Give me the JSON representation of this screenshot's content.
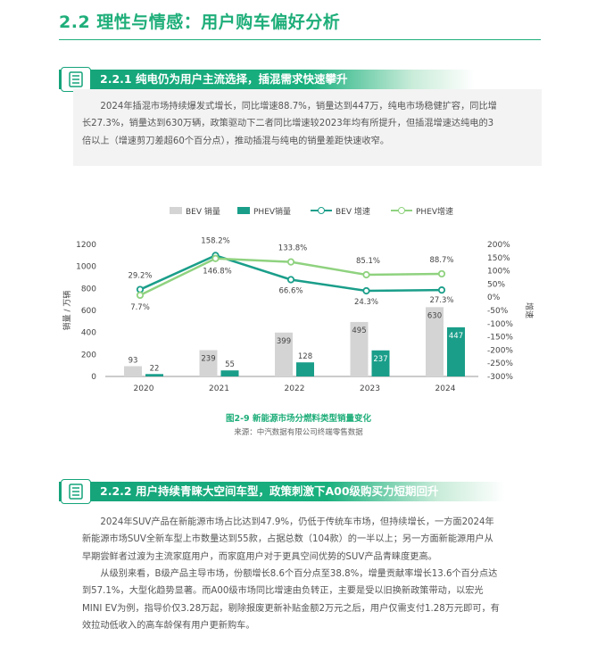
{
  "page": {
    "title": "2.2 理性与情感：用户购车偏好分析",
    "accent": "#1fae7a"
  },
  "section1": {
    "heading": "2.2.1 纯电仍为用户主流选择，插混需求快速攀升",
    "icon": "document-list-icon",
    "lines": [
      "2024年插混市场持续爆发式增长，同比增速88.7%，销量达到447万，纯电市场稳健扩容，同比增",
      "长27.3%，销量达到630万辆，政策驱动下二者同比增速较2023年均有所提升，但插混增速达纯电的3",
      "倍以上（增速剪刀差超60个百分点），推动插混与纯电的销量差距快速收窄。"
    ]
  },
  "legend": {
    "bev_sales": "BEV 销量",
    "phev_sales": "PHEV销量",
    "bev_growth": "BEV 增速",
    "phev_growth": "PHEV增速"
  },
  "chart_data": {
    "type": "bar",
    "categories": [
      "2020",
      "2021",
      "2022",
      "2023",
      "2024"
    ],
    "series": [
      {
        "name": "BEV 销量",
        "kind": "bar",
        "axis": "left",
        "color": "#d4d4d4",
        "values": [
          93,
          239,
          399,
          495,
          630
        ]
      },
      {
        "name": "PHEV销量",
        "kind": "bar",
        "axis": "left",
        "color": "#1a9e8a",
        "values": [
          22,
          55,
          128,
          237,
          447
        ]
      },
      {
        "name": "BEV 增速",
        "kind": "line",
        "axis": "right",
        "color": "#1a9e8a",
        "values": [
          29.2,
          158.2,
          66.6,
          24.3,
          27.3
        ],
        "labels": [
          "29.2%",
          "158.2%",
          "66.6%",
          "24.3%",
          "27.3%"
        ]
      },
      {
        "name": "PHEV增速",
        "kind": "line",
        "axis": "right",
        "color": "#8fd27f",
        "values": [
          7.7,
          146.8,
          133.8,
          85.1,
          88.7
        ],
        "labels": [
          "7.7%",
          "146.8%",
          "133.8%",
          "85.1%",
          "88.7%"
        ]
      }
    ],
    "ylabel": "销量 / 万辆",
    "y2label": "增速",
    "ylim": [
      0,
      1200
    ],
    "yticks": [
      "0",
      "200",
      "400",
      "600",
      "800",
      "1000",
      "1200"
    ],
    "y2lim": [
      -300,
      200
    ],
    "y2ticks": [
      "200%",
      "150%",
      "100%",
      "50%",
      "0%",
      "-50%",
      "-100%",
      "-150%",
      "-200%",
      "-250%",
      "-300%"
    ],
    "grid": false,
    "legend_position": "top"
  },
  "chart": {
    "caption": "图2-9 新能源市场分燃料类型销量变化",
    "source": "来源：中汽数据有限公司终端零售数据"
  },
  "section2": {
    "heading": "2.2.2 用户持续青睐大空间车型，政策刺激下A00级购买力短期回升",
    "icon": "document-list-icon",
    "para1": [
      "2024年SUV产品在新能源市场占比达到47.9%，仍低于传统车市场，但持续增长，一方面2024年",
      "新能源市场SUV全新车型上市数量达到55款，占据总数（104款）的一半以上；另一方面新能源用户从",
      "早期尝鲜者过渡为主流家庭用户，而家庭用户对于更具空间优势的SUV产品青睐度更高。"
    ],
    "para2": [
      "从级别来看，B级产品主导市场，份额增长8.6个百分点至38.8%，增量贡献率增长13.6个百分点达",
      "到57.1%，大型化趋势显著。而A00级市场同比增速由负转正，主要是受以旧换新政策带动，以宏光",
      "MINI EV为例，指导价仅3.28万起，剔除报废更新补贴金额2万元之后，用户仅需支付1.28万元即可，有",
      "效拉动低收入的高车龄保有用户更新购车。"
    ]
  }
}
